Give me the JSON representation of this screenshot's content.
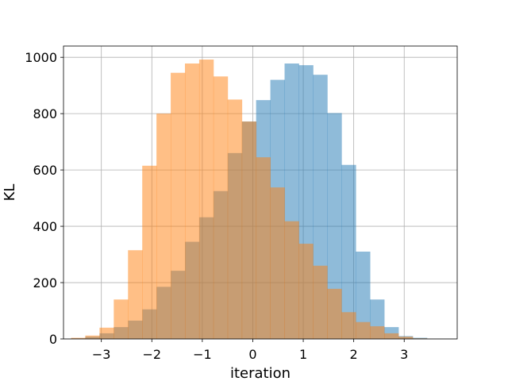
{
  "chart_data": {
    "type": "histogram",
    "title": "",
    "xlabel": "iteration",
    "ylabel": "KL",
    "xlim": [
      -3.75,
      4.05
    ],
    "ylim": [
      0,
      1040
    ],
    "xticks": [
      -3,
      -2,
      -1,
      0,
      1,
      2,
      3
    ],
    "xtick_labels": [
      "−3",
      "−2",
      "−1",
      "0",
      "1",
      "2",
      "3"
    ],
    "yticks": [
      0,
      200,
      400,
      600,
      800,
      1000
    ],
    "ytick_labels": [
      "0",
      "200",
      "400",
      "600",
      "800",
      "1000"
    ],
    "grid": true,
    "bin_edges": [
      -3.6,
      -3.318,
      -3.036,
      -2.754,
      -2.472,
      -2.19,
      -1.908,
      -1.626,
      -1.344,
      -1.062,
      -0.78,
      -0.498,
      -0.216,
      0.066,
      0.348,
      0.63,
      0.912,
      1.194,
      1.476,
      1.758,
      2.04,
      2.322,
      2.604,
      2.886,
      3.168,
      3.45,
      3.732
    ],
    "series": [
      {
        "color": "#1f77b4",
        "opacity": 0.5,
        "values": [
          2,
          8,
          20,
          42,
          65,
          105,
          185,
          242,
          345,
          432,
          525,
          660,
          772,
          848,
          920,
          978,
          972,
          938,
          802,
          618,
          310,
          140,
          42,
          10,
          4,
          0
        ]
      },
      {
        "color": "#ff7f0e",
        "opacity": 0.5,
        "values": [
          4,
          12,
          40,
          140,
          315,
          615,
          800,
          945,
          978,
          992,
          932,
          850,
          772,
          645,
          538,
          418,
          338,
          260,
          178,
          95,
          60,
          45,
          20,
          8,
          2,
          0
        ]
      }
    ]
  }
}
